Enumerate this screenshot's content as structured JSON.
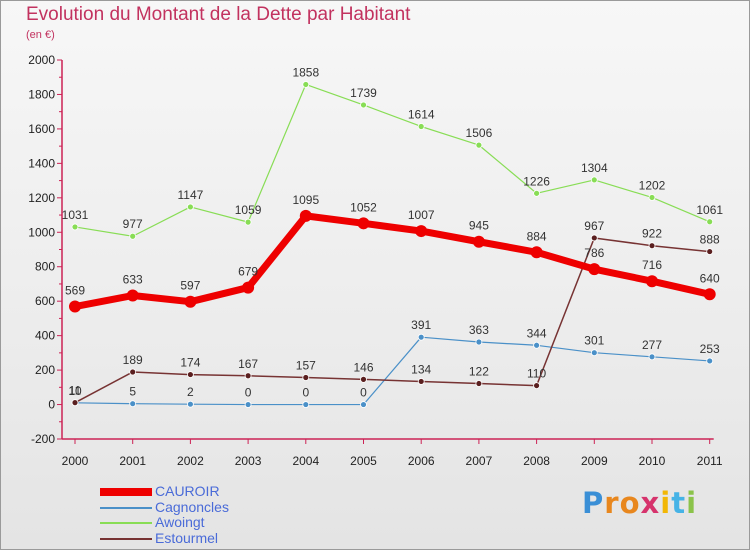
{
  "title": "Evolution du Montant de la Dette par Habitant",
  "subtitle": "(en €)",
  "logo": "Proxiti",
  "chart_data": {
    "type": "line",
    "title": "Evolution du Montant de la Dette par Habitant",
    "ylabel": "(en €)",
    "xlabel": "",
    "ylim": [
      -200,
      2000
    ],
    "yticks": [
      -200,
      0,
      200,
      400,
      600,
      800,
      1000,
      1200,
      1400,
      1600,
      1800,
      2000
    ],
    "x": [
      "2000",
      "2001",
      "2002",
      "2003",
      "2004",
      "2005",
      "2006",
      "2007",
      "2008",
      "2009",
      "2010",
      "2011"
    ],
    "grid": false,
    "legend_position": "bottom-left",
    "series": [
      {
        "name": "CAUROIR",
        "color": "#ee0000",
        "values": [
          569,
          633,
          597,
          679,
          1095,
          1052,
          1007,
          945,
          884,
          786,
          716,
          640
        ]
      },
      {
        "name": "Cagnoncles",
        "color": "#4a90c8",
        "values": [
          10,
          5,
          2,
          0,
          0,
          0,
          391,
          363,
          344,
          301,
          277,
          253
        ]
      },
      {
        "name": "Awoingt",
        "color": "#88dd55",
        "values": [
          1031,
          977,
          1147,
          1059,
          1858,
          1739,
          1614,
          1506,
          1226,
          1304,
          1202,
          1061
        ]
      },
      {
        "name": "Estourmel",
        "color": "#773333",
        "values": [
          11,
          189,
          174,
          167,
          157,
          146,
          134,
          122,
          110,
          967,
          922,
          888
        ]
      }
    ]
  }
}
